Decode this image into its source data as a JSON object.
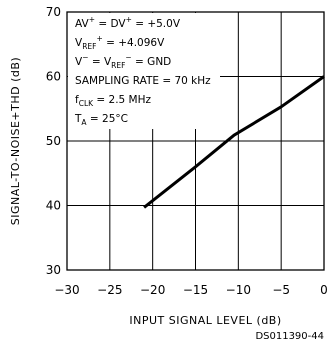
{
  "chart_data": {
    "type": "line",
    "xlabel": "INPUT SIGNAL LEVEL (dB)",
    "ylabel": "SIGNAL-TO-NOISE+THD (dB)",
    "xlim": [
      -30,
      0
    ],
    "ylim": [
      30,
      70
    ],
    "xticks": [
      -30,
      -25,
      -20,
      -15,
      -10,
      -5,
      0
    ],
    "yticks": [
      30,
      40,
      50,
      60,
      70
    ],
    "grid": true,
    "series": [
      {
        "x": [
          -21,
          -15,
          -10.5,
          -5,
          0
        ],
        "y": [
          39.7,
          46.0,
          50.9,
          55.3,
          60.0
        ]
      }
    ],
    "conditions": [
      {
        "base": "AV",
        "sup1": "+",
        "mid": " = DV",
        "sup2": "+",
        "tail": " = +5.0V"
      },
      {
        "base": "V",
        "sub1": "REF",
        "sup1": "+",
        "tail": " = +4.096V"
      },
      {
        "base": "V",
        "sup1": "−",
        "mid": " = V",
        "sub2": "REF",
        "sup2": "−",
        "tail": " = GND"
      },
      {
        "base": "SAMPLING RATE = 70 kHz"
      },
      {
        "base": "f",
        "sub1": "CLK",
        "tail": " = 2.5 MHz"
      },
      {
        "base": "T",
        "sub1": "A",
        "tail": " = 25°C"
      }
    ],
    "figure_id": "DS011390-44"
  }
}
